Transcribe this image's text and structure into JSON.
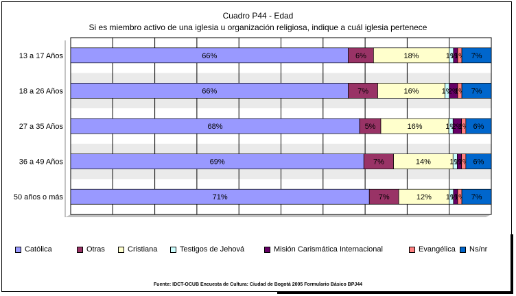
{
  "chart_data": {
    "type": "bar",
    "orientation": "horizontal",
    "stacked": true,
    "title": "Cuadro P44 - Edad",
    "subtitle": "Si es miembro activo de una iglesia u organización religiosa, indique a cuál iglesia pertenece",
    "source": "Fuente: IDCT-OCUB Encuesta de Cultura: Ciudad de Bogotá 2005 Formulario Básico BPJ44",
    "categories": [
      "13 a 17 Años",
      "18 a 26 Años",
      "27 a 35 Años",
      "36 a 49 Años",
      "50 años o más"
    ],
    "xlim": [
      0,
      100
    ],
    "grid": true,
    "legend_position": "bottom",
    "series": [
      {
        "name": "Católica",
        "color": "#9999ff",
        "values": [
          66,
          66,
          68,
          69,
          71
        ],
        "labels": [
          "66%",
          "66%",
          "68%",
          "69%",
          "71%"
        ]
      },
      {
        "name": "Otras",
        "color": "#993366",
        "values": [
          6,
          7,
          5,
          7,
          7
        ],
        "labels": [
          "6%",
          "7%",
          "5%",
          "7%",
          "7%"
        ]
      },
      {
        "name": "Cristiana",
        "color": "#ffffcc",
        "values": [
          18,
          16,
          16,
          14,
          12
        ],
        "labels": [
          "18%",
          "16%",
          "16%",
          "14%",
          "12%"
        ]
      },
      {
        "name": "Testigos de Jehová",
        "color": "#ccffff",
        "values": [
          1,
          1,
          1,
          1,
          1
        ],
        "labels": [
          "1%",
          "1%",
          "1%",
          "1%",
          "1%"
        ]
      },
      {
        "name": "Misión Carismática Internacional",
        "color": "#660066",
        "values": [
          1,
          2,
          2,
          1,
          1
        ],
        "labels": [
          "1%",
          "2%",
          "2%",
          "1%",
          "1%"
        ]
      },
      {
        "name": "Evangélica",
        "color": "#ff8080",
        "values": [
          1,
          1,
          1,
          1,
          1
        ],
        "labels": [
          "1%",
          "1%",
          "1%",
          "1%",
          "1%"
        ]
      },
      {
        "name": "Ns/nr",
        "color": "#0066cc",
        "values": [
          7,
          7,
          6,
          6,
          7
        ],
        "labels": [
          "7%",
          "7%",
          "6%",
          "6%",
          "7%"
        ]
      }
    ]
  }
}
